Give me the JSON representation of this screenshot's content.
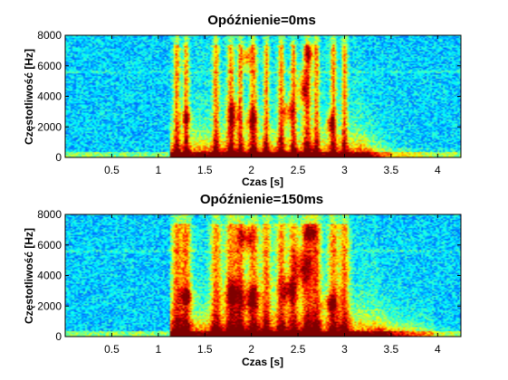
{
  "chart_data": [
    {
      "type": "heatmap",
      "title": "Opóźnienie=0ms",
      "xlabel": "Czas [s]",
      "ylabel": "Częstotliwość [Hz]",
      "xlim": [
        0,
        4.25
      ],
      "ylim": [
        0,
        8000
      ],
      "x_ticks": [
        0.5,
        1,
        1.5,
        2,
        2.5,
        3,
        3.5,
        4
      ],
      "x_tick_labels": [
        "0.5",
        "1",
        "1.5",
        "2",
        "2.5",
        "3",
        "3.5",
        "4"
      ],
      "y_ticks": [
        0,
        2000,
        4000,
        6000,
        8000
      ],
      "y_tick_labels": [
        "0",
        "2000",
        "4000",
        "6000",
        "8000"
      ],
      "speech_interval_s": [
        1.13,
        3.2
      ],
      "reverb_tail_s": 0,
      "colormap": "jet",
      "grid": false
    },
    {
      "type": "heatmap",
      "title": "Opóźnienie=150ms",
      "xlabel": "Czas [s]",
      "ylabel": "Częstotliwość [Hz]",
      "xlim": [
        0,
        4.25
      ],
      "ylim": [
        0,
        8000
      ],
      "x_ticks": [
        0.5,
        1,
        1.5,
        2,
        2.5,
        3,
        3.5,
        4
      ],
      "x_tick_labels": [
        "0.5",
        "1",
        "1.5",
        "2",
        "2.5",
        "3",
        "3.5",
        "4"
      ],
      "y_ticks": [
        0,
        2000,
        4000,
        6000,
        8000
      ],
      "y_tick_labels": [
        "0",
        "2000",
        "4000",
        "6000",
        "8000"
      ],
      "speech_interval_s": [
        1.13,
        3.35
      ],
      "reverb_tail_s": 0.15,
      "colormap": "jet",
      "grid": false
    }
  ]
}
